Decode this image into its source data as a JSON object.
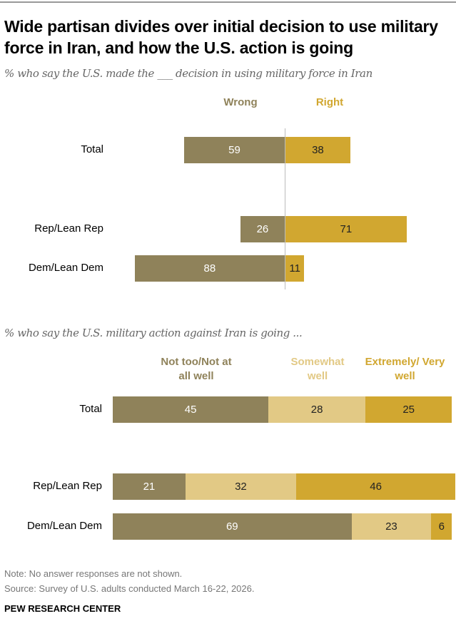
{
  "title": "Wide partisan divides over initial decision to use military force in Iran, and how the U.S. action is going",
  "note": "Note: No answer responses are not shown.",
  "source": "Source: Survey of U.S. adults conducted March 16-22, 2026.",
  "brand": "PEW RESEARCH CENTER",
  "colors": {
    "dark": "#8f825a",
    "light": "#e2c985",
    "gold": "#d1a730"
  },
  "chart_data": [
    {
      "type": "bar",
      "subtitle": "% who say the U.S. made the ___ decision in using military force in Iran",
      "categories": [
        "Total",
        "Rep/Lean Rep",
        "Dem/Lean Dem"
      ],
      "series": [
        {
          "name": "Wrong",
          "values": [
            59,
            26,
            88
          ]
        },
        {
          "name": "Right",
          "values": [
            38,
            71,
            11
          ]
        }
      ]
    },
    {
      "type": "bar",
      "subtitle": "% who say the U.S. military action against Iran is going ...",
      "categories": [
        "Total",
        "Rep/Lean Rep",
        "Dem/Lean Dem"
      ],
      "series": [
        {
          "name": "Not too/Not at all well",
          "values": [
            45,
            21,
            69
          ]
        },
        {
          "name": "Somewhat well",
          "values": [
            28,
            32,
            23
          ]
        },
        {
          "name": "Extremely/ Very well",
          "values": [
            25,
            46,
            6
          ]
        }
      ]
    }
  ]
}
